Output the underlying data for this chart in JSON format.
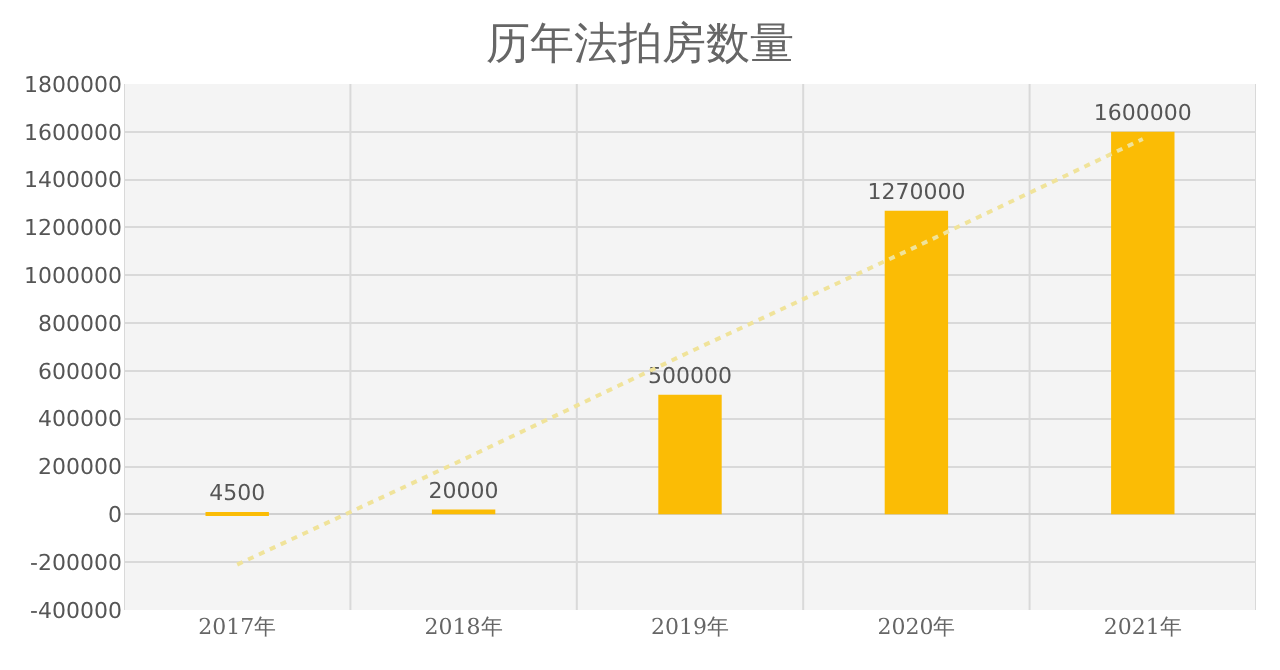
{
  "chart_data": {
    "type": "bar",
    "title": "历年法拍房数量",
    "categories": [
      "2017年",
      "2018年",
      "2019年",
      "2020年",
      "2021年"
    ],
    "series": [
      {
        "color": "#fbbc05",
        "values": [
          4500,
          20000,
          500000,
          1270000,
          1600000
        ],
        "value_labels": [
          "4500",
          "20000",
          "500000",
          "1270000",
          "1600000"
        ]
      },
      {
        "type": "line",
        "color": "#f0e39a",
        "line_style": "dotted",
        "marker": "none",
        "values": [
          -210000,
          230000,
          680000,
          1120000,
          1570000
        ]
      }
    ],
    "ylim": [
      -400000,
      1800000
    ],
    "yticks": [
      -400000,
      -200000,
      0,
      200000,
      400000,
      600000,
      800000,
      1000000,
      1200000,
      1400000,
      1600000,
      1800000
    ],
    "grid": true,
    "legend": false
  }
}
